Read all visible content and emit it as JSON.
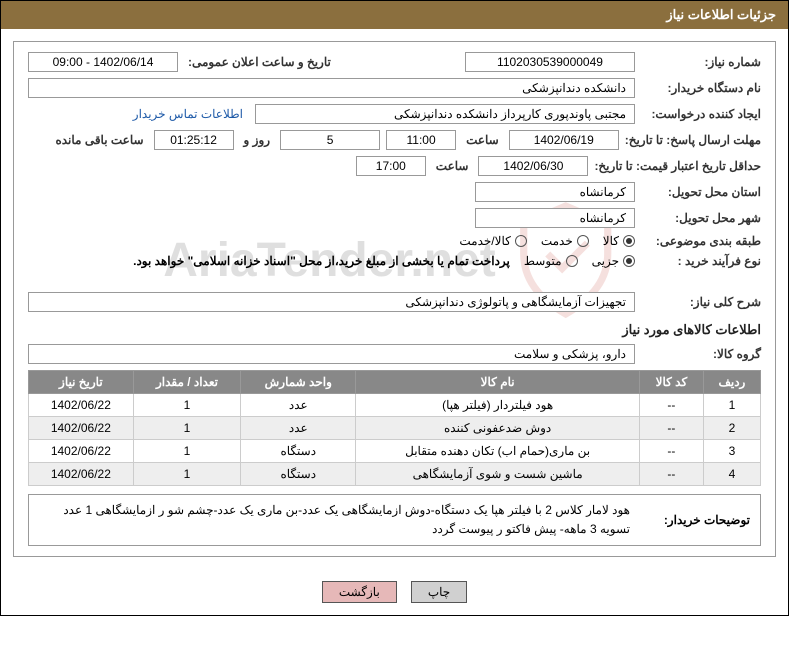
{
  "header": {
    "title": "جزئیات اطلاعات نیاز"
  },
  "fields": {
    "need_number_label": "شماره نیاز:",
    "need_number": "1102030539000049",
    "announce_datetime_label": "تاریخ و ساعت اعلان عمومی:",
    "announce_datetime": "1402/06/14 - 09:00",
    "buyer_org_label": "نام دستگاه خریدار:",
    "buyer_org": "دانشکده دندانپزشکی",
    "requester_label": "ایجاد کننده درخواست:",
    "requester": "مجتبی  پاوندپوری کارپرداز دانشکده دندانپزشکی",
    "contact_link": "اطلاعات تماس خریدار",
    "deadline_label": "مهلت ارسال پاسخ: تا تاریخ:",
    "deadline_date": "1402/06/19",
    "time_label": "ساعت",
    "deadline_time": "11:00",
    "days_remaining": "5",
    "days_and_label": "روز و",
    "countdown": "01:25:12",
    "remaining_label": "ساعت باقی مانده",
    "validity_label": "حداقل تاریخ اعتبار قیمت: تا تاریخ:",
    "validity_date": "1402/06/30",
    "validity_time": "17:00",
    "province_label": "استان محل تحویل:",
    "province": "کرمانشاه",
    "city_label": "شهر محل تحویل:",
    "city": "کرمانشاه",
    "category_label": "طبقه بندی موضوعی:",
    "process_label": "نوع فرآیند خرید :",
    "payment_note": "پرداخت تمام یا بخشی از مبلغ خرید،از محل \"اسناد خزانه اسلامی\" خواهد بود."
  },
  "radios": {
    "category": [
      {
        "label": "کالا",
        "checked": true
      },
      {
        "label": "خدمت",
        "checked": false
      },
      {
        "label": "کالا/خدمت",
        "checked": false
      }
    ],
    "process": [
      {
        "label": "جزیی",
        "checked": true
      },
      {
        "label": "متوسط",
        "checked": false
      }
    ]
  },
  "overview": {
    "label": "شرح کلی نیاز:",
    "text": "تجهیزات آزمایشگاهی و پاتولوژی دندانپزشکی"
  },
  "goods_section_title": "اطلاعات کالاهای مورد نیاز",
  "goods_group_label": "گروه کالا:",
  "goods_group": "دارو، پزشکی و سلامت",
  "table": {
    "headers": [
      "ردیف",
      "کد کالا",
      "نام کالا",
      "واحد شمارش",
      "تعداد / مقدار",
      "تاریخ نیاز"
    ],
    "rows": [
      [
        "1",
        "--",
        "هود فیلتردار (فیلتر هپا)",
        "عدد",
        "1",
        "1402/06/22"
      ],
      [
        "2",
        "--",
        "دوش ضدعفونی کننده",
        "عدد",
        "1",
        "1402/06/22"
      ],
      [
        "3",
        "--",
        "بن ماری(حمام اب) تکان دهنده متقابل",
        "دستگاه",
        "1",
        "1402/06/22"
      ],
      [
        "4",
        "--",
        "ماشین شست و شوی آزمایشگاهی",
        "دستگاه",
        "1",
        "1402/06/22"
      ]
    ]
  },
  "buyer_desc": {
    "label": "توضیحات خریدار:",
    "text": "هود لامار کلاس 2 با فیلتر هپا یک دستگاه-دوش ازمایشگاهی یک عدد-بن ماری یک عدد-چشم شو ر ازمایشگاهی 1 عدد تسویه 3 ماهه- پیش فاکتو ر پیوست گردد"
  },
  "buttons": {
    "print": "چاپ",
    "back": "بازگشت"
  },
  "watermark": "AriaTender.net"
}
